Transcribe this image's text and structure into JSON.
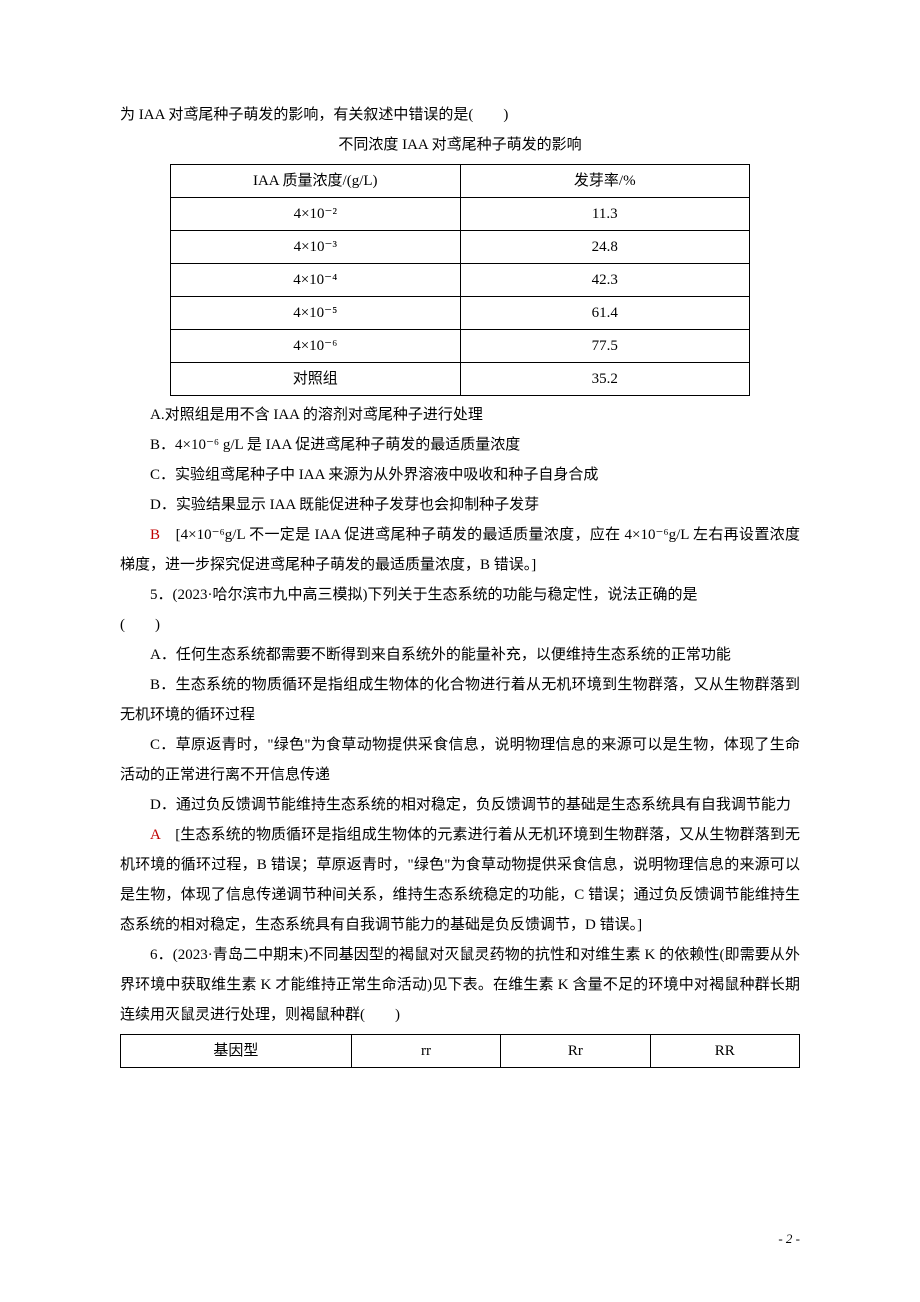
{
  "intro": {
    "line": "为 IAA 对鸢尾种子萌发的影响，有关叙述中错误的是(　　)",
    "caption": "不同浓度 IAA 对鸢尾种子萌发的影响"
  },
  "table1": {
    "headers": [
      "IAA 质量浓度/(g/L)",
      "发芽率/%"
    ],
    "rows": [
      [
        "4×10⁻²",
        "11.3"
      ],
      [
        "4×10⁻³",
        "24.8"
      ],
      [
        "4×10⁻⁴",
        "42.3"
      ],
      [
        "4×10⁻⁵",
        "61.4"
      ],
      [
        "4×10⁻⁶",
        "77.5"
      ],
      [
        "对照组",
        "35.2"
      ]
    ]
  },
  "q4": {
    "optA": "A.对照组是用不含 IAA 的溶剂对鸢尾种子进行处理",
    "optB": "B．4×10⁻⁶ g/L 是 IAA 促进鸢尾种子萌发的最适质量浓度",
    "optC": "C．实验组鸢尾种子中 IAA 来源为从外界溶液中吸收和种子自身合成",
    "optD": "D．实验结果显示 IAA 既能促进种子发芽也会抑制种子发芽",
    "ansLabel": "B",
    "ansText": "　[4×10⁻⁶g/L 不一定是 IAA 促进鸢尾种子萌发的最适质量浓度，应在 4×10⁻⁶g/L 左右再设置浓度梯度，进一步探究促进鸢尾种子萌发的最适质量浓度，B 错误。]"
  },
  "q5": {
    "stem1": "5．(2023·哈尔滨市九中高三模拟)下列关于生态系统的功能与稳定性，说法正确的是",
    "stem2": "(　　)",
    "optA": "A．任何生态系统都需要不断得到来自系统外的能量补充，以便维持生态系统的正常功能",
    "optB": "B．生态系统的物质循环是指组成生物体的化合物进行着从无机环境到生物群落，又从生物群落到无机环境的循环过程",
    "optC": "C．草原返青时，\"绿色\"为食草动物提供采食信息，说明物理信息的来源可以是生物，体现了生命活动的正常进行离不开信息传递",
    "optD": "D．通过负反馈调节能维持生态系统的相对稳定，负反馈调节的基础是生态系统具有自我调节能力",
    "ansLabel": "A",
    "ansText": "　[生态系统的物质循环是指组成生物体的元素进行着从无机环境到生物群落，又从生物群落到无机环境的循环过程，B 错误；草原返青时，\"绿色\"为食草动物提供采食信息，说明物理信息的来源可以是生物，体现了信息传递调节种间关系，维持生态系统稳定的功能，C 错误；通过负反馈调节能维持生态系统的相对稳定，生态系统具有自我调节能力的基础是负反馈调节，D 错误。]"
  },
  "q6": {
    "stem": "6．(2023·青岛二中期末)不同基因型的褐鼠对灭鼠灵药物的抗性和对维生素 K 的依赖性(即需要从外界环境中获取维生素 K 才能维持正常生命活动)见下表。在维生素 K 含量不足的环境中对褐鼠种群长期连续用灭鼠灵进行处理，则褐鼠种群(　　)"
  },
  "table2": {
    "headers": [
      "基因型",
      "rr",
      "Rr",
      "RR"
    ]
  },
  "pagenum": "- 2 -",
  "colors": {
    "answer": "#c00000",
    "text": "#000000",
    "border": "#000000",
    "background": "#ffffff"
  }
}
